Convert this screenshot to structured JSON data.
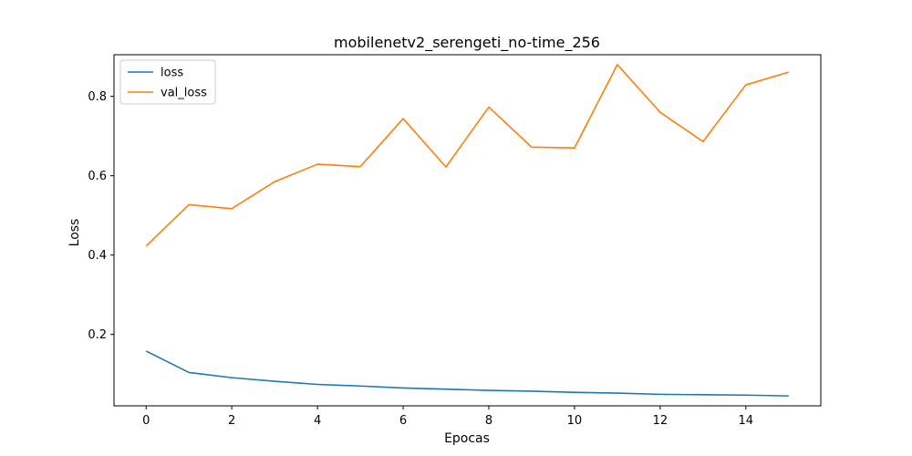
{
  "chart_data": {
    "type": "line",
    "title": "mobilenetv2_serengeti_no-time_256",
    "xlabel": "Epocas",
    "ylabel": "Loss",
    "x": [
      0,
      1,
      2,
      3,
      4,
      5,
      6,
      7,
      8,
      9,
      10,
      11,
      12,
      13,
      14,
      15
    ],
    "xlim": [
      -0.75,
      15.75
    ],
    "ylim": [
      0.02,
      0.905
    ],
    "xticks": [
      0,
      2,
      4,
      6,
      8,
      10,
      12,
      14
    ],
    "yticks": [
      0.2,
      0.4,
      0.6,
      0.8
    ],
    "grid": false,
    "legend": "top-left",
    "series": [
      {
        "name": "loss",
        "color": "#1f77b4",
        "values": [
          0.158,
          0.104,
          0.091,
          0.082,
          0.074,
          0.07,
          0.065,
          0.062,
          0.059,
          0.057,
          0.054,
          0.052,
          0.049,
          0.048,
          0.047,
          0.045
        ]
      },
      {
        "name": "val_loss",
        "color": "#ff7f0e",
        "values": [
          0.423,
          0.527,
          0.517,
          0.585,
          0.629,
          0.623,
          0.744,
          0.622,
          0.773,
          0.672,
          0.67,
          0.88,
          0.76,
          0.686,
          0.829,
          0.861
        ]
      }
    ]
  }
}
